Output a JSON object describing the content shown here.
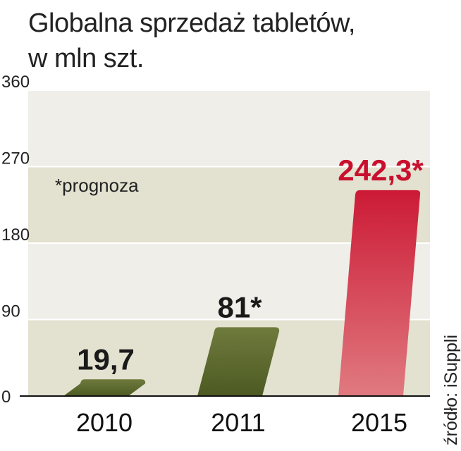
{
  "chart_data": {
    "type": "bar",
    "title_line1": "Globalna sprzedaż tabletów,",
    "title_line2": "w mln szt.",
    "categories": [
      "2010",
      "2011",
      "2015"
    ],
    "values": [
      19.7,
      81,
      242.3
    ],
    "value_labels": [
      "19,7",
      "81*",
      "242,3*"
    ],
    "ylim": [
      0,
      360
    ],
    "yticks": [
      0,
      90,
      180,
      270,
      360
    ],
    "note": "*prognoza",
    "source": "źródło: iSuppli",
    "colors": {
      "bar_green_top": "#6f7a3d",
      "bar_green_bottom": "#4c5a22",
      "bar_red_top": "#cc1a36",
      "bar_red_bottom": "#e07a80",
      "label_dark": "#1a1a1a",
      "label_red": "#c8102e",
      "band_light": "#efeee9",
      "band_tint": "#e3e1cf"
    }
  }
}
